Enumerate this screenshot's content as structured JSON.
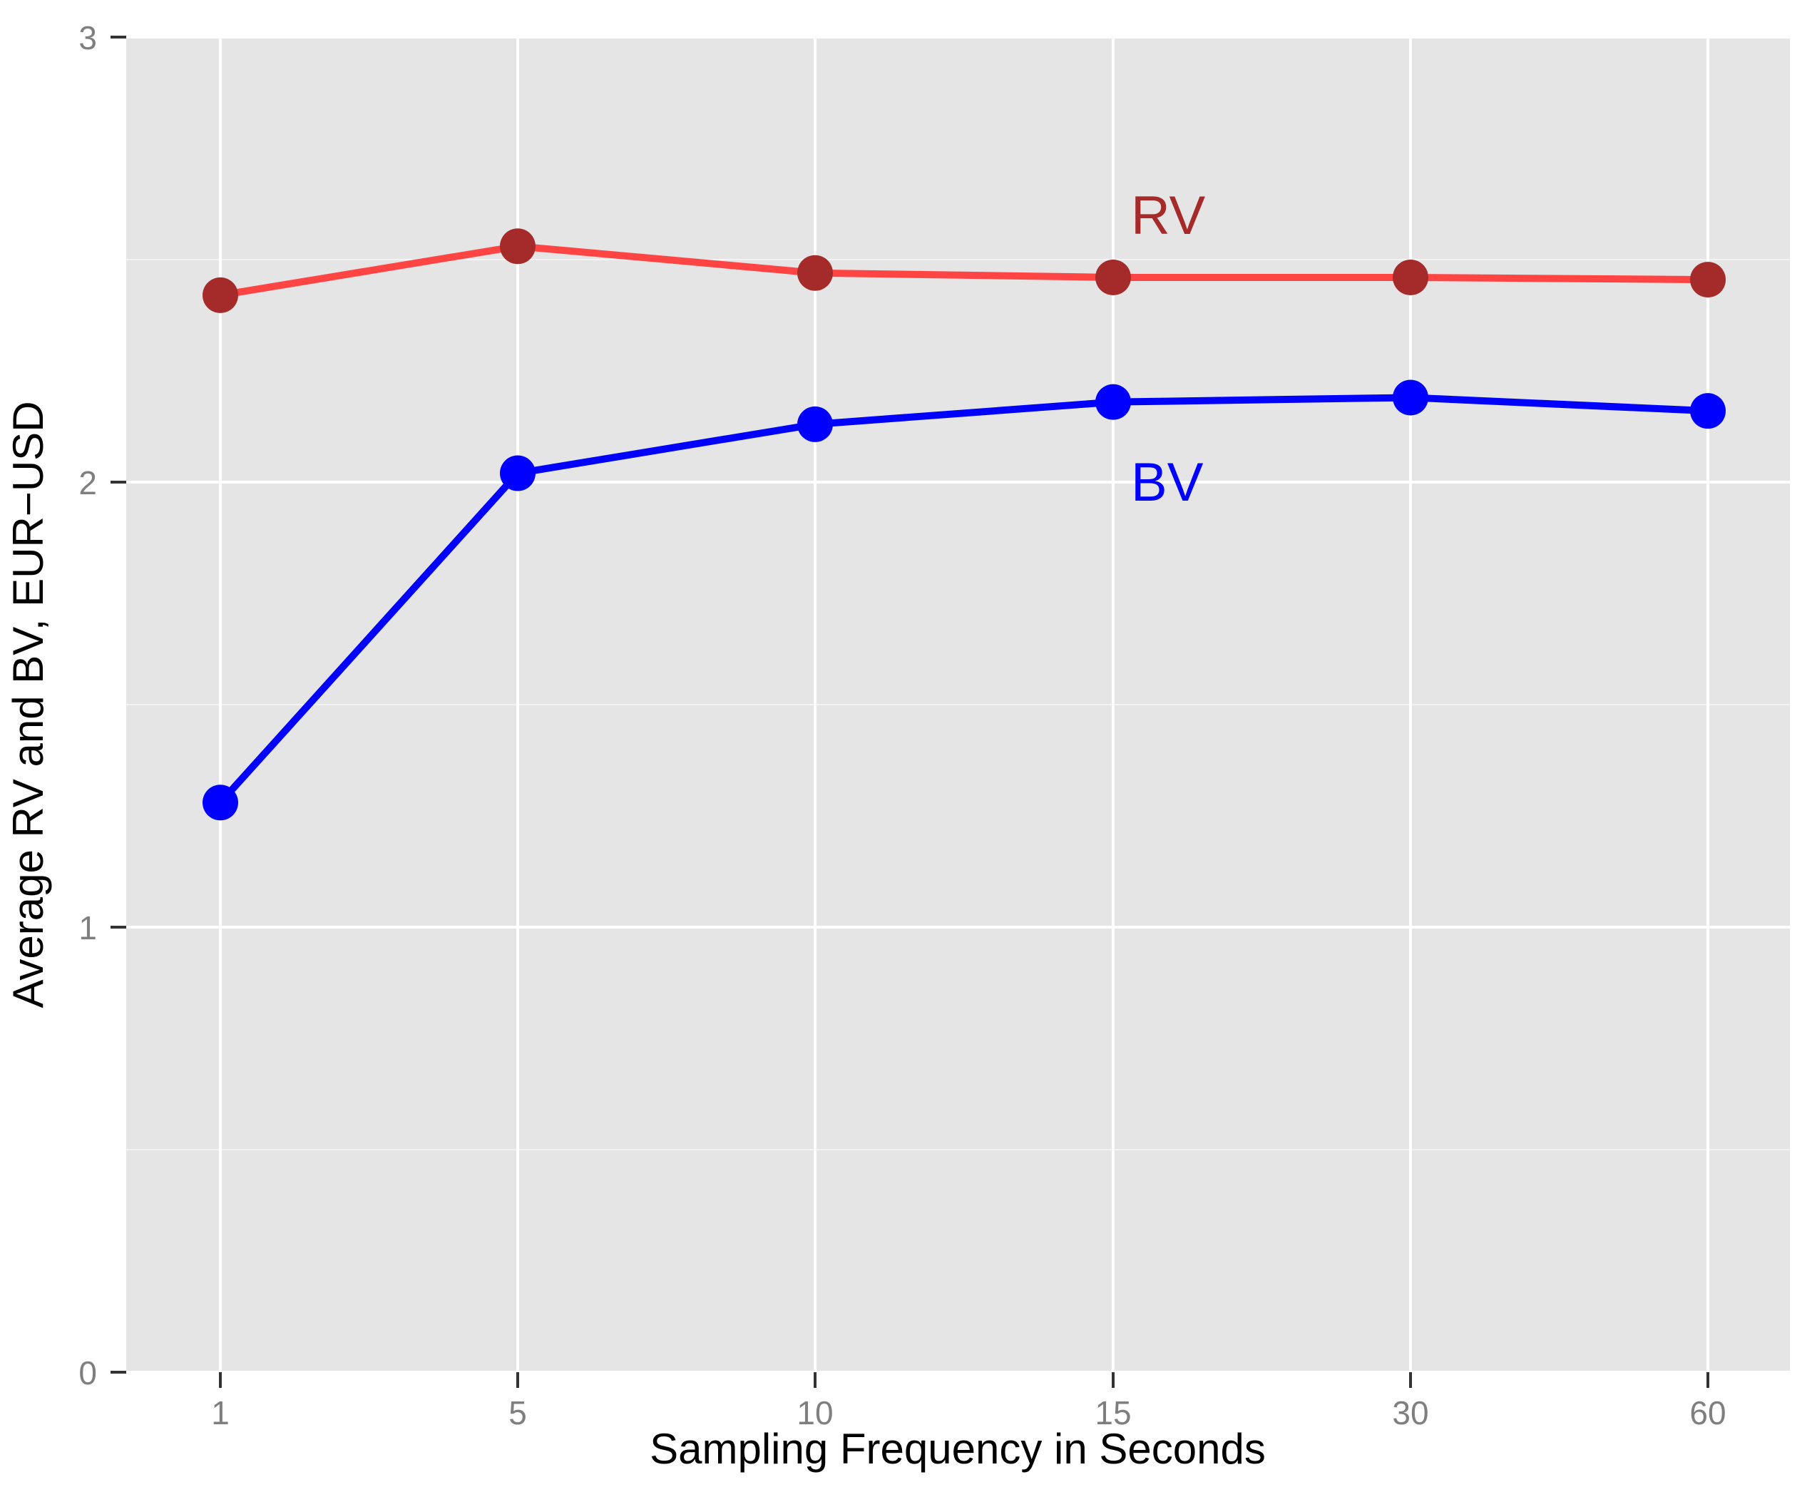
{
  "chart_data": {
    "type": "line",
    "categories": [
      "1",
      "5",
      "10",
      "15",
      "30",
      "60"
    ],
    "series": [
      {
        "name": "RV",
        "values": [
          2.42,
          2.53,
          2.47,
          2.46,
          2.46,
          2.455
        ],
        "line_color": "#ff4444",
        "point_color": "#a52a2a",
        "label_color": "#a52a2a"
      },
      {
        "name": "BV",
        "values": [
          1.28,
          2.02,
          2.13,
          2.18,
          2.19,
          2.16
        ],
        "line_color": "#0000ff",
        "point_color": "#0000ff",
        "label_color": "#0000ff"
      }
    ],
    "xlabel": "Sampling Frequency in Seconds",
    "ylabel": "Average RV and BV, EUR−USD",
    "ylim": [
      0,
      3
    ],
    "yticks": [
      "0",
      "1",
      "2",
      "3"
    ],
    "grid": true,
    "panel_color": "#e5e5e5",
    "grid_color": "#ffffff"
  }
}
